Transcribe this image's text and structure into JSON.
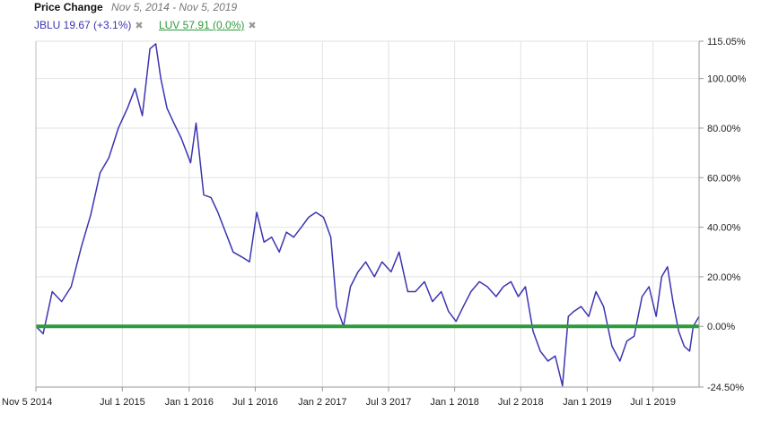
{
  "header": {
    "title": "Price Change",
    "range": "Nov 5, 2014 - Nov 5, 2019"
  },
  "legend": [
    {
      "label": "JBLU 19.67 (+3.1%)",
      "color": "#3b35b0",
      "close": "✖",
      "underline": false
    },
    {
      "label": "LUV 57.91 (0.0%)",
      "color": "#2f9a3c",
      "close": "✖",
      "underline": true
    }
  ],
  "chart_data": {
    "type": "line",
    "x_tick_labels": [
      "Nov 5 2014",
      "Jul 1 2015",
      "Jan 1 2016",
      "Jul 1 2016",
      "Jan 2 2017",
      "Jul 3 2017",
      "Jan 1 2018",
      "Jul 2 2018",
      "Jan 1 2019",
      "Jul 1 2019"
    ],
    "x_tick_dates": [
      "2014-11-05",
      "2015-07-01",
      "2016-01-01",
      "2016-07-01",
      "2017-01-02",
      "2017-07-03",
      "2018-01-01",
      "2018-07-02",
      "2019-01-01",
      "2019-07-01"
    ],
    "y_tick_labels": [
      "115.05%",
      "100.00%",
      "80.00%",
      "60.00%",
      "40.00%",
      "20.00%",
      "0.00%",
      "-24.50%"
    ],
    "ylim": [
      -24.5,
      115.05
    ],
    "grid": true,
    "series": [
      {
        "name": "JBLU",
        "color": "#3b35b0",
        "x": [
          "2014-11-05",
          "2014-11-25",
          "2014-12-20",
          "2015-01-15",
          "2015-02-10",
          "2015-03-10",
          "2015-04-05",
          "2015-05-01",
          "2015-05-25",
          "2015-06-20",
          "2015-07-15",
          "2015-08-05",
          "2015-08-25",
          "2015-09-15",
          "2015-10-01",
          "2015-10-15",
          "2015-11-01",
          "2015-11-20",
          "2015-12-10",
          "2016-01-05",
          "2016-01-20",
          "2016-02-10",
          "2016-03-01",
          "2016-03-20",
          "2016-04-10",
          "2016-05-01",
          "2016-05-25",
          "2016-06-15",
          "2016-07-05",
          "2016-07-25",
          "2016-08-15",
          "2016-09-05",
          "2016-09-25",
          "2016-10-15",
          "2016-11-05",
          "2016-11-25",
          "2016-12-15",
          "2017-01-05",
          "2017-01-25",
          "2017-02-10",
          "2017-03-01",
          "2017-03-20",
          "2017-04-10",
          "2017-05-01",
          "2017-05-25",
          "2017-06-15",
          "2017-07-10",
          "2017-08-01",
          "2017-08-25",
          "2017-09-15",
          "2017-10-10",
          "2017-11-01",
          "2017-11-25",
          "2017-12-15",
          "2018-01-05",
          "2018-01-25",
          "2018-02-15",
          "2018-03-10",
          "2018-04-01",
          "2018-04-25",
          "2018-05-15",
          "2018-06-05",
          "2018-06-25",
          "2018-07-15",
          "2018-08-05",
          "2018-08-25",
          "2018-09-15",
          "2018-10-05",
          "2018-10-25",
          "2018-11-10",
          "2018-11-25",
          "2018-12-15",
          "2019-01-05",
          "2019-01-25",
          "2019-02-15",
          "2019-03-10",
          "2019-04-01",
          "2019-04-20",
          "2019-05-10",
          "2019-06-01",
          "2019-06-20",
          "2019-07-10",
          "2019-07-25",
          "2019-08-10",
          "2019-08-25",
          "2019-09-10",
          "2019-09-25",
          "2019-10-10",
          "2019-10-20",
          "2019-11-05"
        ],
        "values": [
          0,
          -3,
          14,
          10,
          16,
          32,
          45,
          62,
          68,
          80,
          88,
          96,
          85,
          112,
          114,
          100,
          88,
          82,
          76,
          66,
          82,
          53,
          52,
          46,
          38,
          30,
          28,
          26,
          46,
          34,
          36,
          30,
          38,
          36,
          40,
          44,
          46,
          44,
          36,
          8,
          0,
          16,
          22,
          26,
          20,
          26,
          22,
          30,
          14,
          14,
          18,
          10,
          14,
          6,
          2,
          8,
          14,
          18,
          16,
          12,
          16,
          18,
          12,
          16,
          -2,
          -10,
          -14,
          -12,
          -24,
          4,
          6,
          8,
          4,
          14,
          8,
          -8,
          -14,
          -6,
          -4,
          12,
          16,
          4,
          20,
          24,
          10,
          -2,
          -8,
          -10,
          0,
          4
        ]
      },
      {
        "name": "LUV",
        "color": "#2f9a3c",
        "x": [
          "2014-11-05",
          "2019-11-05"
        ],
        "values": [
          0,
          0
        ]
      }
    ]
  }
}
